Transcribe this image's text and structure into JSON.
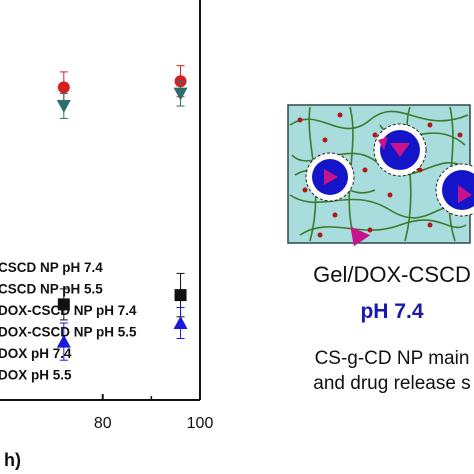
{
  "chart_data": {
    "type": "scatter",
    "xlabel": "h)",
    "x_ticks": [
      80,
      100
    ],
    "xlim": [
      56,
      100
    ],
    "legend_placement": "lower-left",
    "series": [
      {
        "name": "CSCD NP pH 7.4",
        "marker": "circle",
        "color": "#d62020",
        "x": [
          72,
          96
        ],
        "y": [
          88,
          89
        ],
        "err": [
          2.5,
          2.5
        ]
      },
      {
        "name": "CSCD NP pH 5.5",
        "marker": "triangle-down",
        "color": "#2e6e6a",
        "x": [
          72,
          96
        ],
        "y": [
          85,
          87
        ],
        "err": [
          2,
          2
        ]
      },
      {
        "name": "DOX-CSCD NP pH 7.4",
        "marker": "triangle-up",
        "color": "#cc1ca8",
        "x": [],
        "y": [],
        "err": []
      },
      {
        "name": "DOX-CSCD NP pH 5.5",
        "marker": "triangle-down",
        "color": "#7a2aa8",
        "x": [],
        "y": [],
        "err": []
      },
      {
        "name": "DOX  pH 7.4",
        "marker": "square",
        "color": "#111111",
        "x": [
          72,
          96
        ],
        "y": [
          53,
          54.5
        ],
        "err": [
          2.5,
          3.5
        ]
      },
      {
        "name": "DOX  pH 5.5",
        "marker": "triangle-up",
        "color": "#1a1ad8",
        "x": [
          72,
          96
        ],
        "y": [
          47,
          50
        ],
        "err": [
          3,
          2.5
        ]
      }
    ]
  },
  "legend_labels": [
    "CSCD NP pH 7.4",
    "CSCD NP pH 5.5",
    "DOX-CSCD NP pH 7.4",
    "DOX-CSCD NP pH 5.5",
    "DOX  pH 7.4",
    "DOX  pH 5.5"
  ],
  "schematic": {
    "title": "Gel/DOX-CSCD",
    "ph": "pH 7.4",
    "desc_line1": "CS-g-CD NP main",
    "desc_line2": "and drug release s",
    "colors": {
      "gel": "#a9dcdc",
      "fiber": "#3c7a2e",
      "dot": "#b01818",
      "core": "#1414c8",
      "drug": "#c8148c"
    }
  }
}
